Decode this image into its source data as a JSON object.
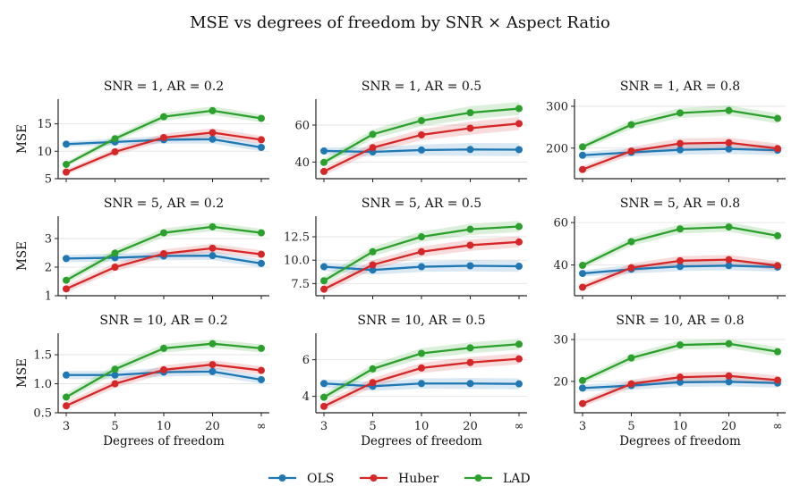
{
  "figure": {
    "title": "MSE vs degrees of freedom by SNR × Aspect Ratio"
  },
  "colors": {
    "OLS": "#1f77b4",
    "Huber": "#d62728",
    "LAD": "#2ca02c"
  },
  "legend": {
    "placement": "bottom-center",
    "items": [
      "OLS",
      "Huber",
      "LAD"
    ]
  },
  "chart_data": [
    {
      "type": "line",
      "title": "SNR = 1,  AR = 0.2",
      "xlabel": "",
      "ylabel": "MSE",
      "categories": [
        "3",
        "5",
        "10",
        "20",
        "∞"
      ],
      "ylim": [
        5,
        19.5
      ],
      "yticks": [
        5,
        10,
        15
      ],
      "band": [
        0.5,
        0.6,
        0.7,
        0.8,
        0.7
      ],
      "series": [
        {
          "name": "OLS",
          "values": [
            11.3,
            11.7,
            12.1,
            12.2,
            10.7
          ]
        },
        {
          "name": "Huber",
          "values": [
            6.2,
            9.9,
            12.5,
            13.4,
            12.1
          ]
        },
        {
          "name": "LAD",
          "values": [
            7.6,
            12.3,
            16.3,
            17.4,
            16.0
          ]
        }
      ]
    },
    {
      "type": "line",
      "title": "SNR = 1,  AR = 0.5",
      "xlabel": "",
      "ylabel": "",
      "categories": [
        "3",
        "5",
        "10",
        "20",
        "∞"
      ],
      "ylim": [
        31,
        74
      ],
      "yticks": [
        40,
        60
      ],
      "band": [
        2,
        2.5,
        3,
        3.5,
        3.5
      ],
      "series": [
        {
          "name": "OLS",
          "values": [
            46,
            45.5,
            46.5,
            46.8,
            46.7
          ]
        },
        {
          "name": "Huber",
          "values": [
            34.9,
            47.8,
            54.7,
            58.3,
            60.8
          ]
        },
        {
          "name": "LAD",
          "values": [
            39.8,
            55.0,
            62.4,
            66.7,
            68.9
          ]
        }
      ]
    },
    {
      "type": "line",
      "title": "SNR = 1,  AR = 0.8",
      "xlabel": "",
      "ylabel": "",
      "categories": [
        "3",
        "5",
        "10",
        "20",
        "∞"
      ],
      "ylim": [
        127,
        317
      ],
      "yticks": [
        200,
        300
      ],
      "band": [
        8,
        10,
        12,
        12,
        12
      ],
      "series": [
        {
          "name": "OLS",
          "values": [
            183,
            190,
            196,
            198,
            195
          ]
        },
        {
          "name": "Huber",
          "values": [
            149,
            193,
            211,
            213,
            199
          ]
        },
        {
          "name": "LAD",
          "values": [
            203,
            256,
            284,
            290,
            271
          ]
        }
      ]
    },
    {
      "type": "line",
      "title": "SNR = 5,  AR = 0.2",
      "xlabel": "",
      "ylabel": "MSE",
      "categories": [
        "3",
        "5",
        "10",
        "20",
        "∞"
      ],
      "ylim": [
        1,
        3.78
      ],
      "yticks": [
        1,
        2,
        3
      ],
      "band": [
        0.13,
        0.14,
        0.15,
        0.15,
        0.14
      ],
      "series": [
        {
          "name": "OLS",
          "values": [
            2.3,
            2.33,
            2.39,
            2.4,
            2.13
          ]
        },
        {
          "name": "Huber",
          "values": [
            1.24,
            2.0,
            2.47,
            2.66,
            2.45
          ]
        },
        {
          "name": "LAD",
          "values": [
            1.54,
            2.49,
            3.2,
            3.41,
            3.2
          ]
        }
      ]
    },
    {
      "type": "line",
      "title": "SNR = 5,  AR = 0.5",
      "xlabel": "",
      "ylabel": "",
      "categories": [
        "3",
        "5",
        "10",
        "20",
        "∞"
      ],
      "ylim": [
        6.2,
        14.7
      ],
      "yticks": [
        7.5,
        10.0,
        12.5
      ],
      "band": [
        0.45,
        0.5,
        0.55,
        0.6,
        0.6
      ],
      "series": [
        {
          "name": "OLS",
          "values": [
            9.3,
            8.95,
            9.3,
            9.4,
            9.35
          ]
        },
        {
          "name": "Huber",
          "values": [
            6.9,
            9.5,
            10.9,
            11.6,
            11.95
          ]
        },
        {
          "name": "LAD",
          "values": [
            7.8,
            10.9,
            12.5,
            13.3,
            13.6
          ]
        }
      ]
    },
    {
      "type": "line",
      "title": "SNR = 5,  AR = 0.8",
      "xlabel": "",
      "ylabel": "",
      "categories": [
        "3",
        "5",
        "10",
        "20",
        "∞"
      ],
      "ylim": [
        25.5,
        63
      ],
      "yticks": [
        40,
        60
      ],
      "band": [
        1.5,
        2,
        2.2,
        2.2,
        2.2
      ],
      "series": [
        {
          "name": "OLS",
          "values": [
            36,
            38,
            39.3,
            39.7,
            39
          ]
        },
        {
          "name": "Huber",
          "values": [
            29.5,
            38.7,
            42,
            42.5,
            39.7
          ]
        },
        {
          "name": "LAD",
          "values": [
            39.8,
            51,
            57,
            57.9,
            53.8
          ]
        }
      ]
    },
    {
      "type": "line",
      "title": "SNR = 10,  AR = 0.2",
      "xlabel": "Degrees of freedom",
      "ylabel": "MSE",
      "categories": [
        "3",
        "5",
        "10",
        "20",
        "∞"
      ],
      "ylim": [
        0.5,
        1.87
      ],
      "yticks": [
        0.5,
        1.0,
        1.5
      ],
      "band": [
        0.07,
        0.07,
        0.075,
        0.075,
        0.07
      ],
      "series": [
        {
          "name": "OLS",
          "values": [
            1.15,
            1.15,
            1.2,
            1.21,
            1.07
          ]
        },
        {
          "name": "Huber",
          "values": [
            0.62,
            1.0,
            1.24,
            1.33,
            1.23
          ]
        },
        {
          "name": "LAD",
          "values": [
            0.77,
            1.25,
            1.61,
            1.69,
            1.61
          ]
        }
      ]
    },
    {
      "type": "line",
      "title": "SNR = 10,  AR = 0.5",
      "xlabel": "Degrees of freedom",
      "ylabel": "",
      "categories": [
        "3",
        "5",
        "10",
        "20",
        "∞"
      ],
      "ylim": [
        3.1,
        7.45
      ],
      "yticks": [
        4,
        6
      ],
      "band": [
        0.22,
        0.25,
        0.28,
        0.3,
        0.3
      ],
      "series": [
        {
          "name": "OLS",
          "values": [
            4.7,
            4.55,
            4.7,
            4.7,
            4.68
          ]
        },
        {
          "name": "Huber",
          "values": [
            3.45,
            4.75,
            5.55,
            5.85,
            6.05
          ]
        },
        {
          "name": "LAD",
          "values": [
            3.95,
            5.5,
            6.35,
            6.65,
            6.85
          ]
        }
      ]
    },
    {
      "type": "line",
      "title": "SNR = 10,  AR = 0.8",
      "xlabel": "Degrees of freedom",
      "ylabel": "",
      "categories": [
        "3",
        "5",
        "10",
        "20",
        "∞"
      ],
      "ylim": [
        12.5,
        31.5
      ],
      "yticks": [
        20,
        30
      ],
      "band": [
        0.8,
        1.0,
        1.1,
        1.1,
        1.1
      ],
      "series": [
        {
          "name": "OLS",
          "values": [
            18.4,
            19.0,
            19.8,
            19.9,
            19.6
          ]
        },
        {
          "name": "Huber",
          "values": [
            14.7,
            19.4,
            21.0,
            21.3,
            20.3
          ]
        },
        {
          "name": "LAD",
          "values": [
            20.2,
            25.6,
            28.7,
            29.0,
            27.1
          ]
        }
      ]
    }
  ]
}
